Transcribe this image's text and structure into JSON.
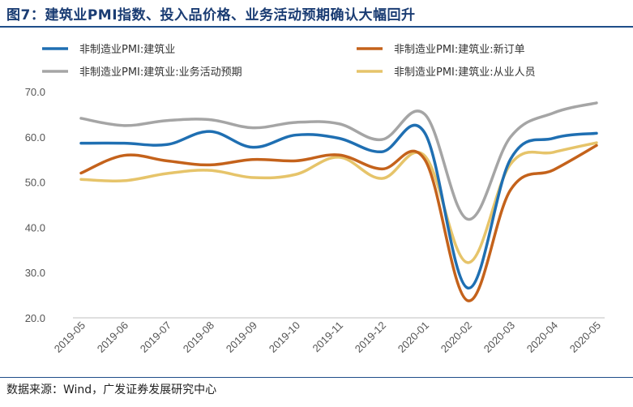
{
  "title": "图7：建筑业PMI指数、投入品价格、业务活动预期确认大幅回升",
  "source": "数据来源：Wind，广发证券发展研究中心",
  "chart_data": {
    "type": "line",
    "categories": [
      "2019-05",
      "2019-06",
      "2019-07",
      "2019-08",
      "2019-09",
      "2019-10",
      "2019-11",
      "2019-12",
      "2020-01",
      "2020-02",
      "2020-03",
      "2020-04",
      "2020-05"
    ],
    "ylim": [
      20,
      70
    ],
    "yticks": [
      "20.0",
      "30.0",
      "40.0",
      "50.0",
      "60.0",
      "70.0"
    ],
    "series": [
      {
        "name": "非制造业PMI:建筑业",
        "color": "#1f6fb2",
        "values": [
          58.6,
          58.6,
          58.3,
          61.2,
          57.7,
          60.4,
          59.7,
          56.7,
          60.9,
          26.6,
          55.1,
          59.7,
          60.8
        ]
      },
      {
        "name": "非制造业PMI:建筑业:新订单",
        "color": "#c4621b",
        "values": [
          52.0,
          55.9,
          54.7,
          53.8,
          55.0,
          54.7,
          56.0,
          52.9,
          55.0,
          23.8,
          48.3,
          52.7,
          58.1
        ]
      },
      {
        "name": "非制造业PMI:建筑业:业务活动预期",
        "color": "#a5a5a5",
        "values": [
          64.1,
          62.5,
          63.6,
          63.8,
          62.0,
          63.2,
          62.9,
          59.4,
          65.0,
          41.8,
          60.0,
          65.3,
          67.5
        ]
      },
      {
        "name": "非制造业PMI:建筑业:从业人员",
        "color": "#e6c46a",
        "values": [
          50.6,
          50.3,
          51.9,
          52.6,
          51.0,
          51.7,
          55.5,
          50.8,
          55.8,
          32.2,
          54.0,
          56.6,
          58.7
        ]
      }
    ]
  }
}
